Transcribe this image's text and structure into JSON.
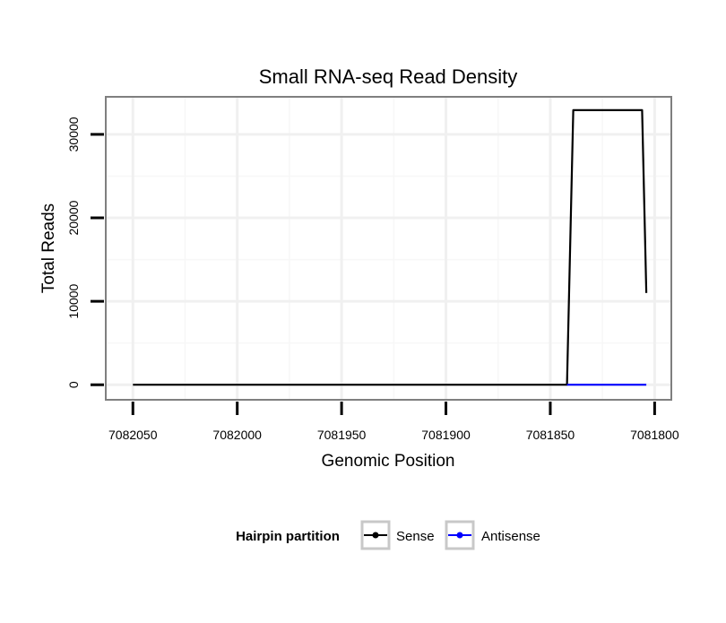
{
  "chart_data": {
    "type": "line",
    "title": "Small RNA-seq Read Density",
    "xlabel": "Genomic Position",
    "ylabel": "Total Reads",
    "x_reversed": true,
    "xlim": [
      7082063,
      7081792
    ],
    "ylim": [
      -1800,
      34500
    ],
    "x_ticks": [
      7082050,
      7082000,
      7081950,
      7081900,
      7081850,
      7081800
    ],
    "x_tick_labels": [
      "7082050",
      "7082000",
      "7081950",
      "7081900",
      "7081850",
      "7081800"
    ],
    "y_ticks": [
      0,
      10000,
      20000,
      30000
    ],
    "y_tick_labels": [
      "0",
      "10000",
      "20000",
      "30000"
    ],
    "grid": true,
    "legend": {
      "title": "Hairpin partition",
      "position": "bottom"
    },
    "series": [
      {
        "name": "Sense",
        "color": "#000000",
        "points": [
          [
            7082050,
            0
          ],
          [
            7081842,
            0
          ],
          [
            7081839,
            32900
          ],
          [
            7081806,
            32900
          ],
          [
            7081804,
            11000
          ]
        ]
      },
      {
        "name": "Antisense",
        "color": "#0000ff",
        "points": [
          [
            7081842,
            0
          ],
          [
            7081804,
            0
          ]
        ]
      }
    ]
  }
}
